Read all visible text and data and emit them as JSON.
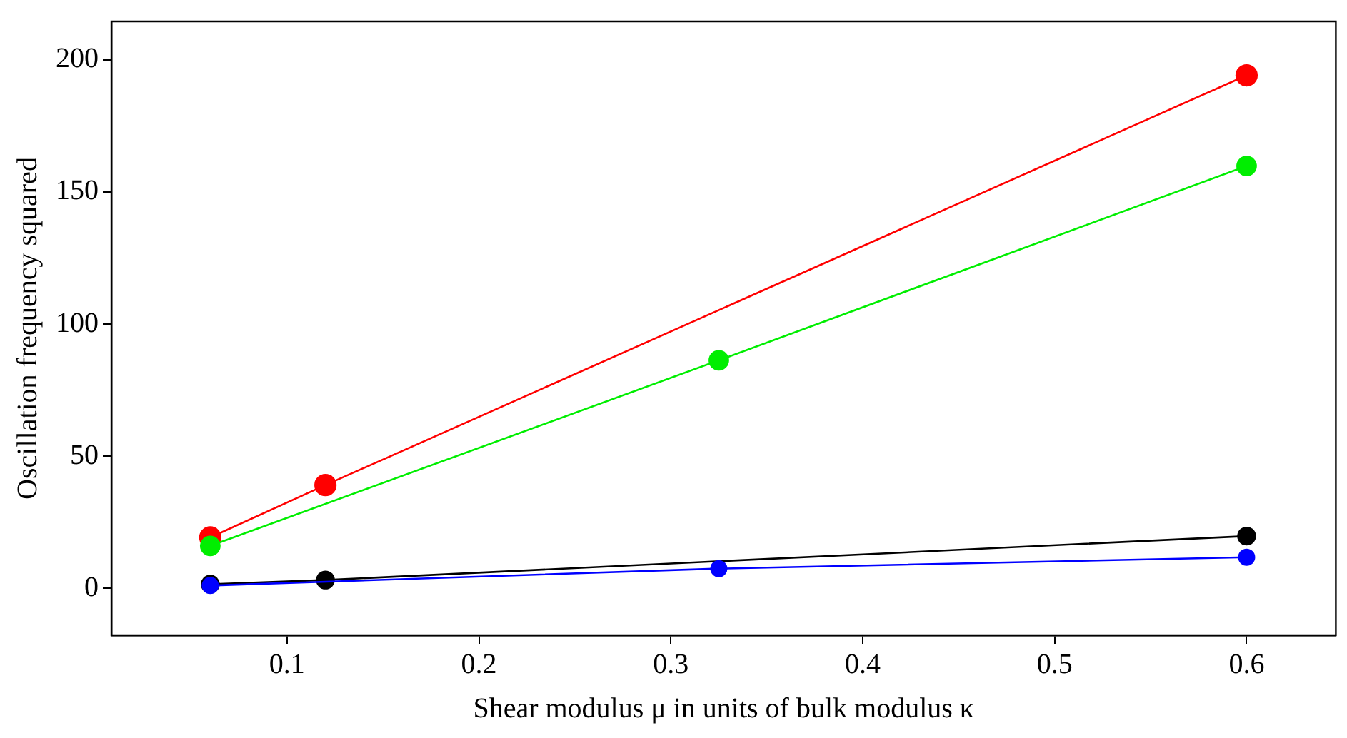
{
  "chart_data": {
    "type": "line",
    "xlabel": "Shear modulus μ in units of bulk modulus κ",
    "ylabel": "Oscillation frequency squared",
    "xlim": [
      0.0085,
      0.6465
    ],
    "xticks": [
      0.1,
      0.2,
      0.3,
      0.4,
      0.5,
      0.6
    ],
    "ylim": [
      -17.7,
      214.5
    ],
    "yticks": [
      0,
      50,
      100,
      150,
      200
    ],
    "grid": false,
    "legend": false,
    "marker": "circle",
    "line_style": "solid",
    "series": [
      {
        "color": "#ff0000",
        "x": [
          0.06,
          0.12,
          0.6
        ],
        "values": [
          19.3,
          39.1,
          194.1
        ]
      },
      {
        "color": "#00ee00",
        "x": [
          0.06,
          0.325,
          0.6
        ],
        "values": [
          16.1,
          86.3,
          159.8
        ]
      },
      {
        "color": "#000000",
        "x": [
          0.06,
          0.12,
          0.6
        ],
        "values": [
          1.6,
          3.2,
          19.8
        ]
      },
      {
        "color": "#0000ff",
        "x": [
          0.06,
          0.325,
          0.6
        ],
        "values": [
          1.1,
          7.5,
          11.8
        ]
      }
    ]
  }
}
